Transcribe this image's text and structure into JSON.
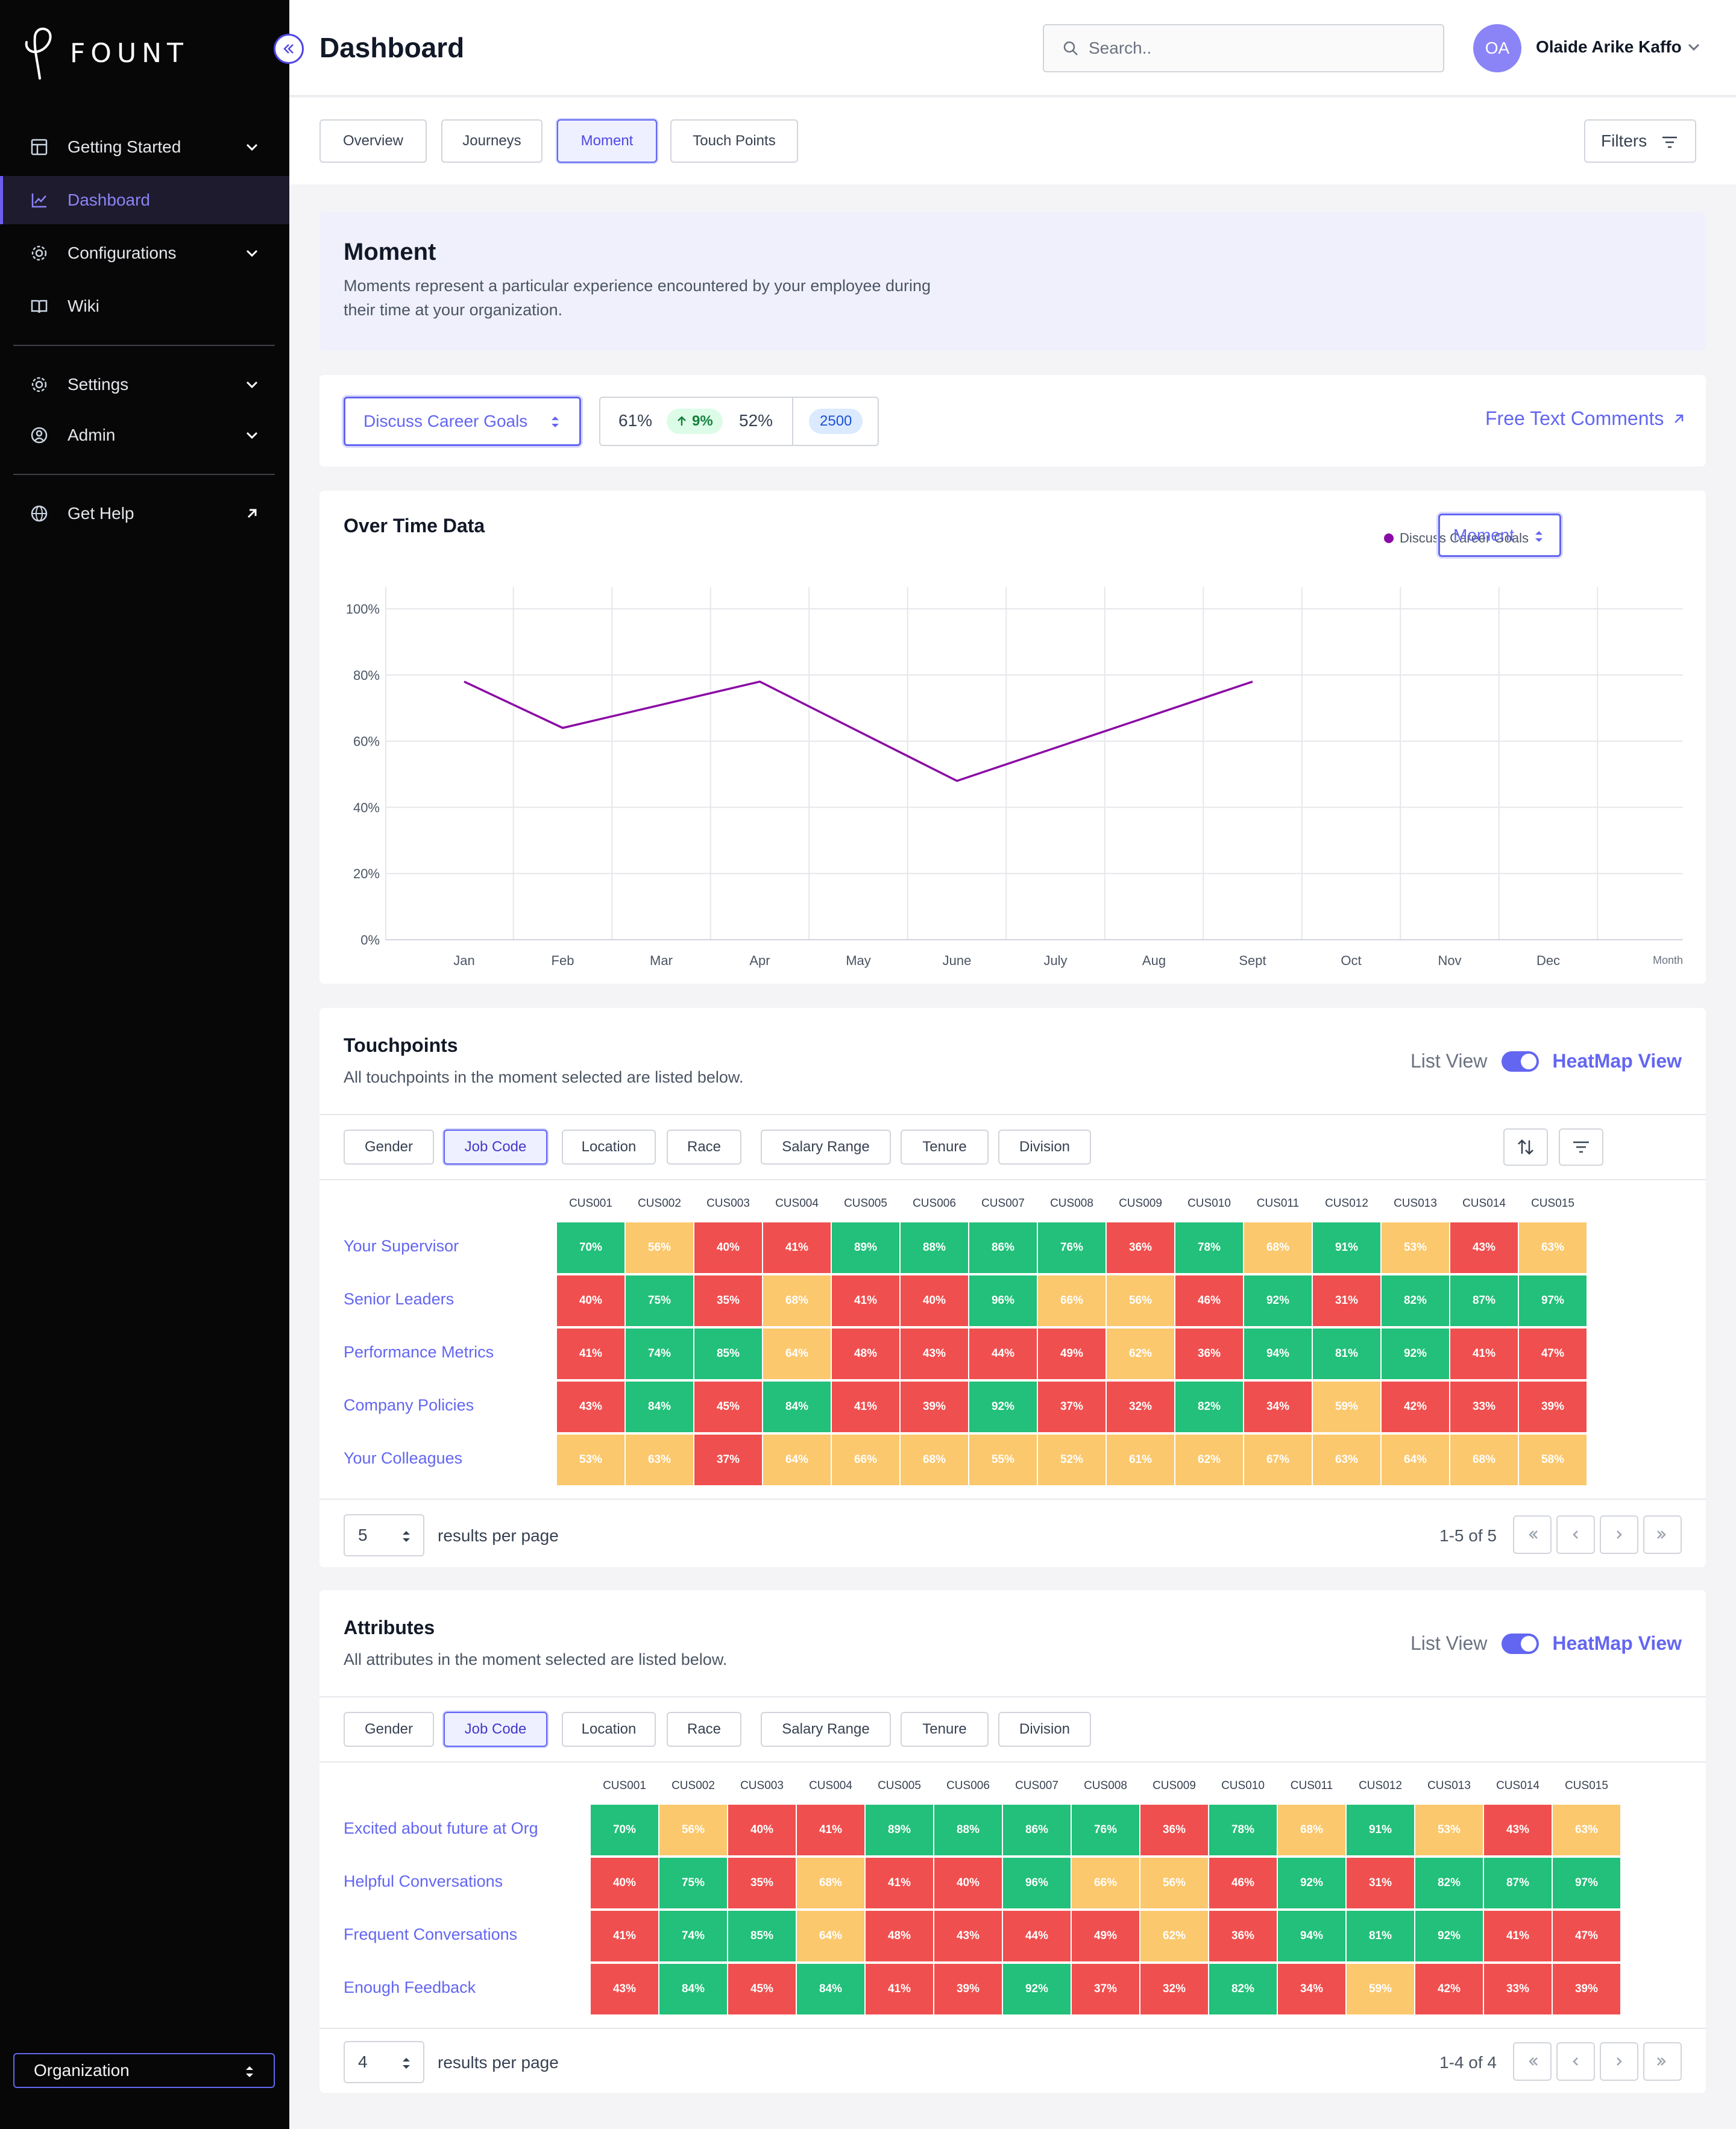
{
  "app": {
    "brand": "FOUNT"
  },
  "sidebar": {
    "items": [
      {
        "label": "Getting Started",
        "icon": "layout-icon"
      },
      {
        "label": "Dashboard",
        "icon": "chart-line-icon"
      },
      {
        "label": "Configurations",
        "icon": "gear-icon"
      },
      {
        "label": "Wiki",
        "icon": "book-icon"
      },
      {
        "label": "Settings",
        "icon": "gear-icon"
      },
      {
        "label": "Admin",
        "icon": "user-circle-icon"
      },
      {
        "label": "Get Help",
        "icon": "globe-icon"
      }
    ],
    "organization_select": "Organization"
  },
  "header": {
    "title": "Dashboard",
    "search_placeholder": "Search..",
    "avatar_initials": "OA",
    "user_name": "Olaide Arike Kaffo"
  },
  "tabs": [
    {
      "label": "Overview"
    },
    {
      "label": "Journeys"
    },
    {
      "label": "Moment"
    },
    {
      "label": "Touch Points"
    }
  ],
  "filters_label": "Filters",
  "moment": {
    "title": "Moment",
    "description": "Moments represent a particular experience encountered by your employee during their time at your organization."
  },
  "selector": {
    "moment_value": "Discuss Career Goals",
    "stat_current": "61%",
    "stat_change": "9%",
    "stat_previous": "52%",
    "respondents": "2500",
    "free_text_link": "Free Text Comments"
  },
  "over_time": {
    "title": "Over Time Data",
    "select_value": "Moment"
  },
  "chart_data": {
    "type": "line",
    "title": "Over Time Data",
    "xlabel": "Month",
    "ylabel": "",
    "categories": [
      "Jan",
      "Feb",
      "Mar",
      "Apr",
      "May",
      "June",
      "July",
      "Aug",
      "Sept",
      "Oct",
      "Nov",
      "Dec"
    ],
    "y_ticks": [
      "0%",
      "20%",
      "40%",
      "60%",
      "80%",
      "100%"
    ],
    "ylim": [
      0,
      100
    ],
    "series": [
      {
        "name": "Discuss Career Goals",
        "color": "#8b0aa5",
        "points": [
          {
            "x": "Jan",
            "y": 78
          },
          {
            "x": "Feb",
            "y": 64
          },
          {
            "x": "Apr",
            "y": 78
          },
          {
            "x": "June",
            "y": 48
          },
          {
            "x": "Sept",
            "y": 78
          }
        ]
      }
    ],
    "grid": true,
    "legend": "top-right"
  },
  "colors": {
    "accent": "#6366f1",
    "green": "#22c07a",
    "yellow": "#fbc86d",
    "red": "#f04f4f"
  },
  "view_toggle": {
    "list": "List View",
    "heatmap": "HeatMap View"
  },
  "filter_chips": [
    "Gender",
    "Job Code",
    "Location",
    "Race",
    "Salary Range",
    "Tenure",
    "Division"
  ],
  "columns": [
    "CUS001",
    "CUS002",
    "CUS003",
    "CUS004",
    "CUS005",
    "CUS006",
    "CUS007",
    "CUS008",
    "CUS009",
    "CUS010",
    "CUS011",
    "CUS012",
    "CUS013",
    "CUS014",
    "CUS015"
  ],
  "touchpoints": {
    "title": "Touchpoints",
    "description": "All touchpoints in the moment selected are listed below.",
    "rows": [
      {
        "label": "Your Supervisor",
        "values": [
          70,
          56,
          40,
          41,
          89,
          88,
          86,
          76,
          36,
          78,
          68,
          91,
          53,
          43,
          63
        ]
      },
      {
        "label": "Senior Leaders",
        "values": [
          40,
          75,
          35,
          68,
          41,
          40,
          96,
          66,
          56,
          46,
          92,
          31,
          82,
          87,
          97
        ]
      },
      {
        "label": "Performance Metrics",
        "values": [
          41,
          74,
          85,
          64,
          48,
          43,
          44,
          49,
          62,
          36,
          94,
          81,
          92,
          41,
          47
        ]
      },
      {
        "label": "Company Policies",
        "values": [
          43,
          84,
          45,
          84,
          41,
          39,
          92,
          37,
          32,
          82,
          34,
          59,
          42,
          33,
          39
        ]
      },
      {
        "label": "Your Colleagues",
        "values": [
          53,
          63,
          37,
          64,
          66,
          68,
          55,
          52,
          61,
          62,
          67,
          63,
          64,
          68,
          58
        ]
      }
    ],
    "per_page": "5",
    "per_page_label": "results per page",
    "page_info": "1-5 of 5"
  },
  "attributes": {
    "title": "Attributes",
    "description": "All attributes in the moment selected are listed below.",
    "rows": [
      {
        "label": "Excited about future at Org",
        "values": [
          70,
          56,
          40,
          41,
          89,
          88,
          86,
          76,
          36,
          78,
          68,
          91,
          53,
          43,
          63
        ]
      },
      {
        "label": "Helpful Conversations",
        "values": [
          40,
          75,
          35,
          68,
          41,
          40,
          96,
          66,
          56,
          46,
          92,
          31,
          82,
          87,
          97
        ]
      },
      {
        "label": "Frequent Conversations",
        "values": [
          41,
          74,
          85,
          64,
          48,
          43,
          44,
          49,
          62,
          36,
          94,
          81,
          92,
          41,
          47
        ]
      },
      {
        "label": "Enough Feedback",
        "values": [
          43,
          84,
          45,
          84,
          41,
          39,
          92,
          37,
          32,
          82,
          34,
          59,
          42,
          33,
          39
        ]
      }
    ],
    "per_page": "4",
    "per_page_label": "results per page",
    "page_info": "1-4 of 4"
  }
}
